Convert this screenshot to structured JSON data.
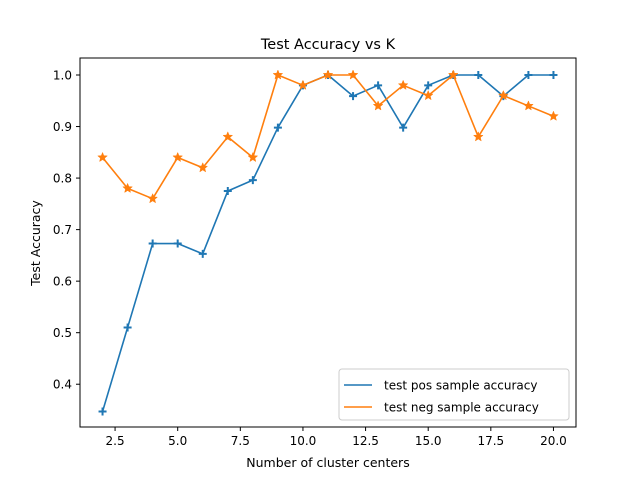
{
  "chart_data": {
    "type": "line",
    "title": "Test Accuracy vs K",
    "xlabel": "Number of cluster centers",
    "ylabel": "Test Accuracy",
    "xlim": [
      1.1,
      20.9
    ],
    "ylim": [
      0.317,
      1.033
    ],
    "xticks": [
      "2.5",
      "5.0",
      "7.5",
      "10.0",
      "12.5",
      "15.0",
      "17.5",
      "20.0"
    ],
    "xtick_values": [
      2.5,
      5.0,
      7.5,
      10.0,
      12.5,
      15.0,
      17.5,
      20.0
    ],
    "yticks": [
      "0.4",
      "0.5",
      "0.6",
      "0.7",
      "0.8",
      "0.9",
      "1.0"
    ],
    "ytick_values": [
      0.4,
      0.5,
      0.6,
      0.7,
      0.8,
      0.9,
      1.0
    ],
    "grid": false,
    "legend_position": "bottom-right",
    "x": [
      2,
      3,
      4,
      5,
      6,
      7,
      8,
      9,
      10,
      11,
      12,
      13,
      14,
      15,
      16,
      17,
      18,
      19,
      20
    ],
    "series": [
      {
        "name": "test pos sample accuracy",
        "color": "#1f77b4",
        "marker": "plus",
        "values": [
          0.347,
          0.51,
          0.673,
          0.673,
          0.653,
          0.775,
          0.796,
          0.898,
          0.98,
          1.0,
          0.959,
          0.98,
          0.898,
          0.98,
          1.0,
          1.0,
          0.959,
          1.0,
          1.0
        ]
      },
      {
        "name": "test neg sample accuracy",
        "color": "#ff7f0e",
        "marker": "star",
        "values": [
          0.84,
          0.78,
          0.76,
          0.84,
          0.82,
          0.88,
          0.84,
          1.0,
          0.98,
          1.0,
          1.0,
          0.94,
          0.98,
          0.96,
          1.0,
          0.88,
          0.96,
          0.94,
          0.92
        ]
      }
    ]
  }
}
